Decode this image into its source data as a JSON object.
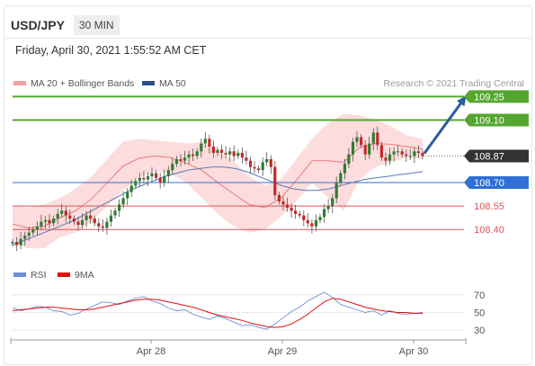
{
  "header": {
    "symbol": "USD/JPY",
    "timeframe": "30 MIN"
  },
  "timestamp": "Friday, April 30, 2021 1:55:52 AM CET",
  "legend": {
    "bollinger": "MA 20 + Bollinger Bands",
    "ma50": "MA 50",
    "credit": "Research © 2021 Trading Central",
    "rsi": "RSI",
    "ma9": "9MA"
  },
  "colors": {
    "up": "#2e7d32",
    "down": "#c62828",
    "band": "#fbd0d0",
    "ma20": "#e57373",
    "ma50": "#5b7bb5",
    "resistance": "#55a630",
    "support_blue": "#2f6fd6",
    "support_red": "#e05555",
    "arrow": "#2b5c9e",
    "price_tag": "#333333"
  },
  "chart_data": [
    {
      "type": "candlestick",
      "title": "",
      "x_tick_labels": [
        "Apr 28",
        "Apr 29",
        "Apr 30"
      ],
      "ylim": [
        108.2,
        109.35
      ],
      "current_price": 108.87,
      "levels": [
        {
          "label": "109.25",
          "value": 109.25,
          "kind": "resistance"
        },
        {
          "label": "109.10",
          "value": 109.1,
          "kind": "resistance"
        },
        {
          "label": "108.87",
          "value": 108.87,
          "kind": "current"
        },
        {
          "label": "108.70",
          "value": 108.7,
          "kind": "pivot"
        },
        {
          "label": "108.55",
          "value": 108.55,
          "kind": "support"
        },
        {
          "label": "108.40",
          "value": 108.4,
          "kind": "support"
        }
      ],
      "close_series": [
        108.32,
        108.3,
        108.34,
        108.36,
        108.38,
        108.4,
        108.42,
        108.45,
        108.46,
        108.44,
        108.47,
        108.5,
        108.52,
        108.49,
        108.47,
        108.45,
        108.43,
        108.46,
        108.49,
        108.47,
        108.44,
        108.42,
        108.41,
        108.45,
        108.49,
        108.52,
        108.56,
        108.6,
        108.64,
        108.68,
        108.71,
        108.73,
        108.72,
        108.74,
        108.76,
        108.73,
        108.7,
        108.74,
        108.78,
        108.82,
        108.85,
        108.84,
        108.86,
        108.88,
        108.87,
        108.9,
        108.95,
        108.98,
        108.93,
        108.89,
        108.91,
        108.89,
        108.88,
        108.9,
        108.87,
        108.89,
        108.86,
        108.84,
        108.8,
        108.79,
        108.78,
        108.83,
        108.85,
        108.8,
        108.62,
        108.58,
        108.56,
        108.54,
        108.52,
        108.5,
        108.49,
        108.46,
        108.44,
        108.42,
        108.46,
        108.48,
        108.53,
        108.55,
        108.6,
        108.7,
        108.76,
        108.82,
        108.88,
        108.96,
        108.99,
        108.94,
        108.88,
        108.95,
        109.02,
        108.94,
        108.86,
        108.84,
        108.88,
        108.9,
        108.9,
        108.88,
        108.87,
        108.87,
        108.9,
        108.89,
        108.87
      ],
      "ma50_series": [
        108.3,
        108.33,
        108.36,
        108.39,
        108.42,
        108.45,
        108.49,
        108.53,
        108.57,
        108.61,
        108.65,
        108.68,
        108.71,
        108.74,
        108.76,
        108.78,
        108.79,
        108.8,
        108.8,
        108.79,
        108.77,
        108.74,
        108.71,
        108.68,
        108.66,
        108.65,
        108.65,
        108.66,
        108.68,
        108.7,
        108.72,
        108.73,
        108.74,
        108.75,
        108.76,
        108.77
      ],
      "band_upper": [
        108.55,
        108.54,
        108.56,
        108.6,
        108.66,
        108.74,
        108.85,
        108.96,
        108.98,
        108.97,
        108.96,
        108.95,
        108.96,
        108.9,
        108.84,
        108.74,
        108.68,
        108.72,
        108.85,
        108.98,
        109.08,
        109.14,
        109.13,
        109.1,
        109.06,
        109.0,
        108.98
      ],
      "band_lower": [
        108.32,
        108.28,
        108.28,
        108.35,
        108.38,
        108.45,
        108.55,
        108.65,
        108.73,
        108.77,
        108.76,
        108.7,
        108.6,
        108.5,
        108.42,
        108.38,
        108.4,
        108.48,
        108.58,
        108.7,
        108.6,
        108.52,
        108.72,
        108.8,
        108.83,
        108.86,
        108.85
      ]
    },
    {
      "type": "line",
      "title": "",
      "ylim": [
        25,
        80
      ],
      "y_tick_labels": [
        "70",
        "50",
        "30"
      ],
      "series": [
        {
          "name": "RSI",
          "values": [
            55,
            52,
            54,
            57,
            56,
            52,
            51,
            47,
            49,
            54,
            58,
            62,
            61,
            59,
            63,
            66,
            68,
            63,
            60,
            55,
            52,
            53,
            48,
            45,
            42,
            46,
            43,
            39,
            35,
            36,
            33,
            31,
            37,
            44,
            51,
            56,
            63,
            68,
            73,
            67,
            59,
            56,
            53,
            50,
            52,
            47,
            52,
            49,
            48,
            49,
            50
          ]
        },
        {
          "name": "9MA",
          "values": [
            52,
            53,
            54,
            55,
            56,
            56,
            55,
            54,
            53,
            53,
            54,
            56,
            58,
            60,
            62,
            64,
            65,
            65,
            64,
            62,
            60,
            58,
            56,
            53,
            50,
            47,
            45,
            43,
            41,
            38,
            36,
            34,
            33,
            34,
            37,
            42,
            48,
            55,
            62,
            66,
            65,
            62,
            59,
            56,
            54,
            52,
            51,
            50,
            50,
            49,
            49
          ]
        }
      ]
    }
  ]
}
